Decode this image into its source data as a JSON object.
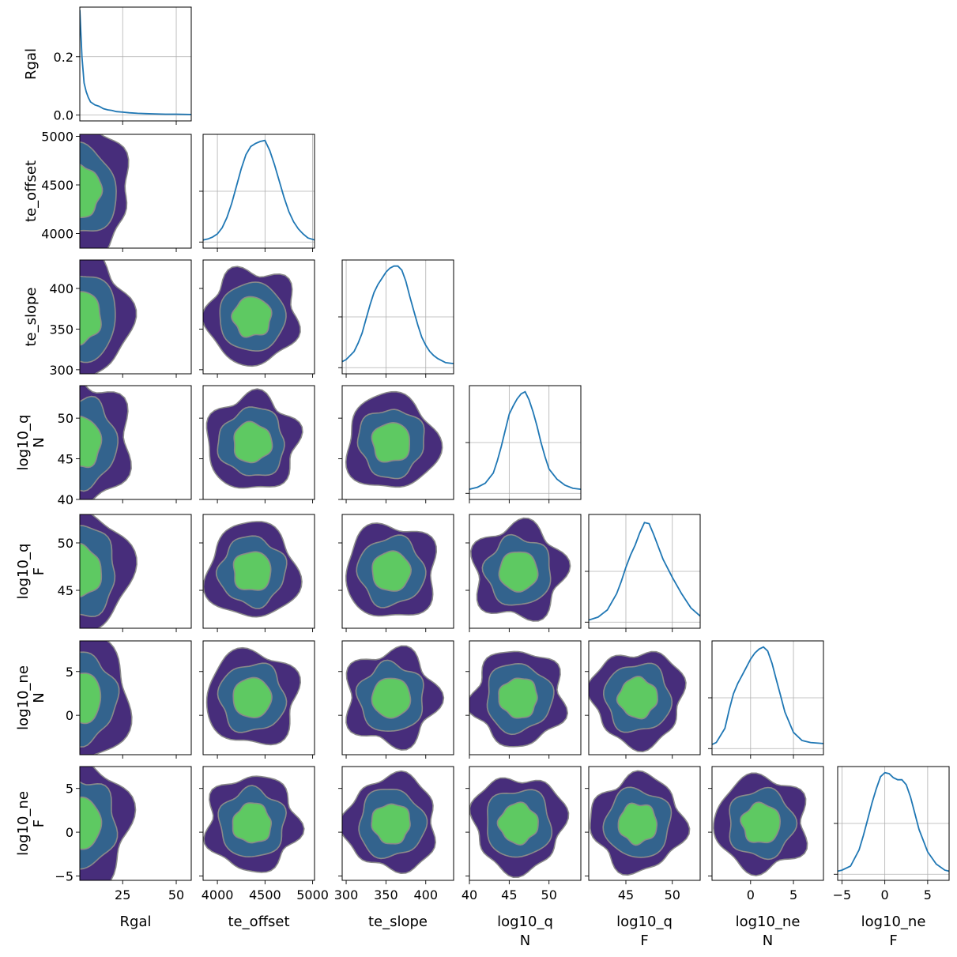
{
  "chart_data": {
    "type": "corner",
    "title": "",
    "parameters": [
      {
        "name": "Rgal",
        "label": [
          "Rgal"
        ],
        "range": [
          5,
          57
        ],
        "ticks": [
          25,
          50
        ],
        "tick_labels": [
          "25",
          "50"
        ]
      },
      {
        "name": "te_offset",
        "label": [
          "te_offset"
        ],
        "range": [
          3850,
          5020
        ],
        "ticks": [
          4000,
          4500,
          5000
        ],
        "tick_labels": [
          "4000",
          "4500",
          "5000"
        ]
      },
      {
        "name": "te_slope",
        "label": [
          "te_slope"
        ],
        "range": [
          295,
          435
        ],
        "ticks": [
          300,
          350,
          400
        ],
        "tick_labels": [
          "300",
          "350",
          "400"
        ]
      },
      {
        "name": "log10_q_N",
        "label": [
          "log10_q",
          "N"
        ],
        "range": [
          40,
          54
        ],
        "ticks": [
          40,
          45,
          50
        ],
        "tick_labels": [
          "40",
          "45",
          "50"
        ]
      },
      {
        "name": "log10_q_F",
        "label": [
          "log10_q",
          "F"
        ],
        "range": [
          41,
          53
        ],
        "ticks": [
          45,
          50
        ],
        "tick_labels": [
          "45",
          "50"
        ]
      },
      {
        "name": "log10_ne_N",
        "label": [
          "log10_ne",
          "N"
        ],
        "range": [
          -4.5,
          8.5
        ],
        "ticks": [
          0,
          5
        ],
        "tick_labels": [
          "0",
          "5"
        ]
      },
      {
        "name": "log10_ne_F",
        "label": [
          "log10_ne",
          "F"
        ],
        "range": [
          -5.5,
          7.5
        ],
        "ticks": [
          -5,
          0,
          5
        ],
        "tick_labels": [
          "−5",
          "0",
          "5"
        ]
      }
    ],
    "diagonal": [
      {
        "param": "Rgal",
        "ylim": [
          -0.02,
          0.37
        ],
        "yticks": [
          0.0,
          0.2
        ],
        "ytick_labels": [
          "0.0",
          "0.2"
        ],
        "x": [
          5,
          6,
          7,
          8,
          9,
          10,
          12,
          14,
          16,
          18,
          20,
          22,
          25,
          28,
          32,
          36,
          40,
          45,
          50,
          57
        ],
        "density": [
          0.36,
          0.2,
          0.11,
          0.08,
          0.06,
          0.045,
          0.035,
          0.03,
          0.022,
          0.018,
          0.016,
          0.012,
          0.01,
          0.008,
          0.006,
          0.005,
          0.004,
          0.003,
          0.003,
          0.002
        ]
      },
      {
        "param": "te_offset",
        "x": [
          3850,
          3900,
          3950,
          4000,
          4050,
          4100,
          4150,
          4200,
          4250,
          4300,
          4350,
          4400,
          4450,
          4500,
          4550,
          4600,
          4650,
          4700,
          4750,
          4800,
          4850,
          4900,
          4950,
          5020
        ],
        "density": [
          0.02,
          0.03,
          0.05,
          0.08,
          0.14,
          0.24,
          0.38,
          0.55,
          0.72,
          0.86,
          0.94,
          0.97,
          0.99,
          1.0,
          0.9,
          0.76,
          0.6,
          0.44,
          0.3,
          0.2,
          0.13,
          0.08,
          0.04,
          0.02
        ]
      },
      {
        "param": "te_slope",
        "x": [
          295,
          300,
          305,
          310,
          315,
          320,
          325,
          330,
          335,
          340,
          345,
          350,
          355,
          360,
          365,
          370,
          375,
          380,
          385,
          390,
          395,
          400,
          405,
          410,
          415,
          420,
          425,
          435
        ],
        "density": [
          0.06,
          0.08,
          0.12,
          0.16,
          0.24,
          0.34,
          0.48,
          0.62,
          0.74,
          0.82,
          0.88,
          0.94,
          0.98,
          1.0,
          1.0,
          0.96,
          0.85,
          0.7,
          0.56,
          0.42,
          0.3,
          0.22,
          0.16,
          0.12,
          0.09,
          0.07,
          0.05,
          0.04
        ]
      },
      {
        "param": "log10_q_N",
        "x": [
          40,
          41,
          42,
          43,
          43.5,
          44,
          44.5,
          45,
          45.5,
          46,
          46.5,
          47,
          47.5,
          48,
          48.5,
          49,
          49.5,
          50,
          51,
          52,
          53,
          54
        ],
        "density": [
          0.04,
          0.06,
          0.1,
          0.2,
          0.32,
          0.46,
          0.62,
          0.78,
          0.86,
          0.93,
          0.98,
          1.0,
          0.92,
          0.8,
          0.66,
          0.5,
          0.36,
          0.24,
          0.14,
          0.08,
          0.05,
          0.04
        ]
      },
      {
        "param": "log10_q_F",
        "x": [
          41,
          42,
          43,
          44,
          44.5,
          45,
          45.5,
          46,
          46.5,
          47,
          47.5,
          48,
          48.5,
          49,
          50,
          51,
          52,
          53
        ],
        "density": [
          0.02,
          0.05,
          0.12,
          0.28,
          0.4,
          0.54,
          0.66,
          0.76,
          0.88,
          0.98,
          0.97,
          0.86,
          0.74,
          0.62,
          0.44,
          0.28,
          0.14,
          0.06
        ]
      },
      {
        "param": "log10_ne_N",
        "x": [
          -4.5,
          -4,
          -3,
          -2.5,
          -2,
          -1.5,
          -1,
          -0.5,
          0,
          0.5,
          1,
          1.5,
          2,
          2.5,
          3,
          3.5,
          4,
          5,
          6,
          7,
          8.5
        ],
        "density": [
          0.04,
          0.06,
          0.2,
          0.38,
          0.54,
          0.64,
          0.72,
          0.8,
          0.88,
          0.94,
          0.98,
          1.0,
          0.96,
          0.84,
          0.68,
          0.52,
          0.36,
          0.16,
          0.08,
          0.06,
          0.05
        ]
      },
      {
        "param": "log10_ne_F",
        "x": [
          -5.5,
          -5,
          -4,
          -3,
          -2.5,
          -2,
          -1.5,
          -1,
          -0.5,
          0,
          0.5,
          1,
          1.5,
          2,
          2.5,
          3,
          3.5,
          4,
          5,
          6,
          7,
          7.5
        ],
        "density": [
          0.03,
          0.04,
          0.08,
          0.24,
          0.38,
          0.54,
          0.7,
          0.84,
          0.96,
          1.0,
          0.99,
          0.95,
          0.93,
          0.93,
          0.88,
          0.76,
          0.6,
          0.44,
          0.22,
          0.1,
          0.04,
          0.03
        ]
      }
    ],
    "kde_levels": [
      "outer",
      "middle",
      "inner"
    ],
    "level_colors": [
      "#472d7b",
      "#33638d",
      "#5ec962"
    ],
    "contour_line_color": "#8a8a8a",
    "line_color": "#1f77b4",
    "grid_on_diagonal": true
  }
}
